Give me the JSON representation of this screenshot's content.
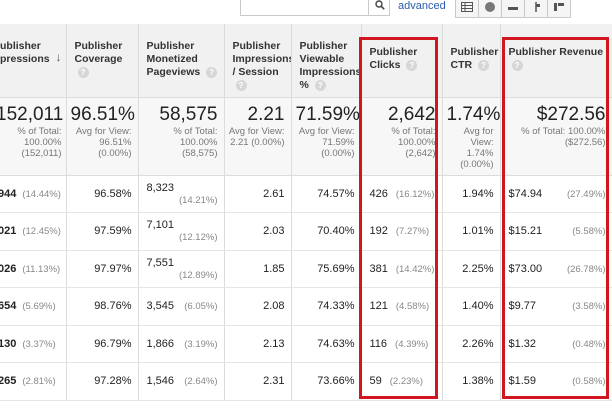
{
  "toolbar": {
    "advanced_label": "advanced",
    "search_icon": "search-icon",
    "view_icons": [
      "table-view-icon",
      "pie-view-icon",
      "bar-view-icon",
      "comparison-view-icon",
      "pivot-view-icon"
    ]
  },
  "columns": [
    {
      "label": "Publisher Impressions",
      "display": "ublisher\npressions"
    },
    {
      "label": "Publisher Coverage"
    },
    {
      "label": "Publisher Monetized Pageviews"
    },
    {
      "label": "Publisher Impressions / Session"
    },
    {
      "label": "Publisher Viewable Impressions %"
    },
    {
      "label": "Publisher Clicks"
    },
    {
      "label": "Publisher CTR"
    },
    {
      "label": "Publisher Revenue"
    }
  ],
  "summary": [
    {
      "value": "152,011",
      "sub": ""
    },
    {
      "value": "96.51%",
      "sub": "Avg for View: 96.51% (0.00%)"
    },
    {
      "value": "58,575",
      "sub": "% of Total: 100.00% (58,575)"
    },
    {
      "value": "2.21",
      "sub": "Avg for View: 2.21 (0.00%)"
    },
    {
      "value": "71.59%",
      "sub": "Avg for View: 71.59% (0.00%)"
    },
    {
      "value": "2,642",
      "sub": "% of Total: 100.00% (2,642)"
    },
    {
      "value": "1.74%",
      "sub": "Avg for View: 1.74% (0.00%)"
    },
    {
      "value": "$272.56",
      "sub": "% of Total: 100.00% ($272.56)"
    }
  ],
  "summary_first_sub": "% of Total: 100.00% (152,011)",
  "rows": [
    {
      "imp": "944",
      "imp_pct": "(14.44%)",
      "coverage": "96.58%",
      "pageviews": "8,323",
      "pv_pct": "(14.21%)",
      "per_session": "2.61",
      "viewable": "74.57%",
      "clicks": "426",
      "clicks_pct": "(16.12%)",
      "ctr": "1.94%",
      "revenue": "$74.94",
      "rev_pct": "(27.49%)"
    },
    {
      "imp": "021",
      "imp_pct": "(12.45%)",
      "coverage": "97.59%",
      "pageviews": "7,101",
      "pv_pct": "(12.12%)",
      "per_session": "2.03",
      "viewable": "70.40%",
      "clicks": "192",
      "clicks_pct": "(7.27%)",
      "ctr": "1.01%",
      "revenue": "$15.21",
      "rev_pct": "(5.58%)"
    },
    {
      "imp": "026",
      "imp_pct": "(11.13%)",
      "coverage": "97.97%",
      "pageviews": "7,551",
      "pv_pct": "(12.89%)",
      "per_session": "1.85",
      "viewable": "75.69%",
      "clicks": "381",
      "clicks_pct": "(14.42%)",
      "ctr": "2.25%",
      "revenue": "$73.00",
      "rev_pct": "(26.78%)"
    },
    {
      "imp": "654",
      "imp_pct": "(5.69%)",
      "coverage": "98.76%",
      "pageviews": "3,545",
      "pv_pct": "(6.05%)",
      "per_session": "2.08",
      "viewable": "74.33%",
      "clicks": "121",
      "clicks_pct": "(4.58%)",
      "ctr": "1.40%",
      "revenue": "$9.77",
      "rev_pct": "(3.58%)"
    },
    {
      "imp": "130",
      "imp_pct": "(3.37%)",
      "coverage": "96.79%",
      "pageviews": "1,866",
      "pv_pct": "(3.19%)",
      "per_session": "2.13",
      "viewable": "74.63%",
      "clicks": "116",
      "clicks_pct": "(4.39%)",
      "ctr": "2.26%",
      "revenue": "$1.32",
      "rev_pct": "(0.48%)"
    },
    {
      "imp": "265",
      "imp_pct": "(2.81%)",
      "coverage": "97.28%",
      "pageviews": "1,546",
      "pv_pct": "(2.64%)",
      "per_session": "2.31",
      "viewable": "73.66%",
      "clicks": "59",
      "clicks_pct": "(2.23%)",
      "ctr": "1.38%",
      "revenue": "$1.59",
      "rev_pct": "(0.58%)"
    }
  ],
  "colors": {
    "highlight": "#d0161f",
    "header_bg": "#f1f1f1",
    "link": "#2a5db0"
  }
}
